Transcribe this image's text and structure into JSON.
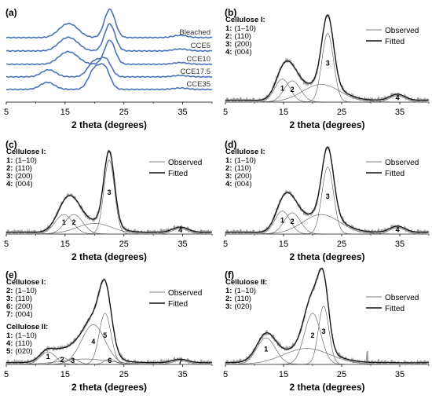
{
  "chart_data": [
    {
      "panel": "(a)",
      "type": "line",
      "xlabel": "2 theta (degrees)",
      "ylabel": "",
      "xlim": [
        5,
        40
      ],
      "xticks": [
        5,
        15,
        25,
        35
      ],
      "grid": false,
      "series": [
        {
          "name": "Bleached",
          "color": "#4a72b8",
          "peaks": [
            [
              14.8,
              0.3,
              1.3
            ],
            [
              16.4,
              0.3,
              1.3
            ],
            [
              22.6,
              1.0,
              0.9
            ],
            [
              34.6,
              0.08,
              1.2
            ]
          ]
        },
        {
          "name": "CCE5",
          "color": "#4a72b8",
          "peaks": [
            [
              14.8,
              0.3,
              1.3
            ],
            [
              16.4,
              0.28,
              1.3
            ],
            [
              22.6,
              0.95,
              0.9
            ],
            [
              34.6,
              0.07,
              1.2
            ]
          ]
        },
        {
          "name": "CCE10",
          "color": "#4a72b8",
          "peaks": [
            [
              14.8,
              0.28,
              1.3
            ],
            [
              16.4,
              0.26,
              1.3
            ],
            [
              22.6,
              0.85,
              0.9
            ],
            [
              34.6,
              0.06,
              1.2
            ]
          ]
        },
        {
          "name": "CCE17.5",
          "color": "#4a72b8",
          "peaks": [
            [
              12.2,
              0.25,
              1.2
            ],
            [
              20.0,
              0.55,
              1.1
            ],
            [
              22.0,
              0.55,
              0.9
            ],
            [
              34.6,
              0.05,
              1.2
            ]
          ]
        },
        {
          "name": "CCE35",
          "color": "#4a72b8",
          "peaks": [
            [
              12.0,
              0.25,
              1.2
            ],
            [
              20.0,
              0.7,
              1.0
            ],
            [
              21.8,
              0.7,
              0.9
            ],
            [
              34.6,
              0.05,
              1.2
            ]
          ]
        }
      ]
    },
    {
      "panel": "(b)",
      "type": "line",
      "xlabel": "2 theta (degrees)",
      "xlim": [
        5,
        40
      ],
      "xticks": [
        5,
        15,
        25,
        35
      ],
      "legend": [
        "Observed",
        "Fitted"
      ],
      "legend_placement": "right",
      "phase_legend": [
        {
          "title": "Cellulose I:",
          "items": [
            {
              "num": "1:",
              "hkl": "(1–10)"
            },
            {
              "num": "2:",
              "hkl": "(110)"
            },
            {
              "num": "3:",
              "hkl": "(200)"
            },
            {
              "num": "4:",
              "hkl": "(004)"
            }
          ]
        }
      ],
      "peaks": [
        {
          "label": "1",
          "center": 14.8,
          "height": 0.26,
          "width": 1.3
        },
        {
          "label": "2",
          "center": 16.5,
          "height": 0.24,
          "width": 1.4
        },
        {
          "label": "3",
          "center": 22.6,
          "height": 0.78,
          "width": 1.0
        },
        {
          "label": "4",
          "center": 34.6,
          "height": 0.07,
          "width": 1.3
        }
      ],
      "amorphous": {
        "center": 21.5,
        "height": 0.2,
        "width": 3.2
      },
      "baseline": 0.02
    },
    {
      "panel": "(c)",
      "type": "line",
      "xlabel": "2 theta (degrees)",
      "xlim": [
        5,
        40
      ],
      "xticks": [
        5,
        15,
        25,
        35
      ],
      "legend": [
        "Observed",
        "Fitted"
      ],
      "legend_placement": "right",
      "phase_legend": [
        {
          "title": "Cellulose I:",
          "items": [
            {
              "num": "1:",
              "hkl": "(1–10)"
            },
            {
              "num": "2:",
              "hkl": "(110)"
            },
            {
              "num": "3:",
              "hkl": "(200)"
            },
            {
              "num": "4:",
              "hkl": "(004)"
            }
          ]
        }
      ],
      "peaks": [
        {
          "label": "1",
          "center": 14.8,
          "height": 0.22,
          "width": 1.5
        },
        {
          "label": "2",
          "center": 16.5,
          "height": 0.22,
          "width": 1.5
        },
        {
          "label": "3",
          "center": 22.5,
          "height": 0.84,
          "width": 0.9
        },
        {
          "label": "4",
          "center": 34.6,
          "height": 0.06,
          "width": 1.3
        }
      ],
      "amorphous": {
        "center": 20.0,
        "height": 0.12,
        "width": 3.0
      },
      "baseline": 0.02
    },
    {
      "panel": "(d)",
      "type": "line",
      "xlabel": "2 theta (degrees)",
      "xlim": [
        5,
        40
      ],
      "xticks": [
        5,
        15,
        25,
        35
      ],
      "legend": [
        "Observed",
        "Fitted"
      ],
      "legend_placement": "right",
      "phase_legend": [
        {
          "title": "Cellulose I:",
          "items": [
            {
              "num": "1:",
              "hkl": "(1–10)"
            },
            {
              "num": "2:",
              "hkl": "(110)"
            },
            {
              "num": "3:",
              "hkl": "(200)"
            },
            {
              "num": "4:",
              "hkl": "(004)"
            }
          ]
        }
      ],
      "peaks": [
        {
          "label": "1",
          "center": 14.8,
          "height": 0.26,
          "width": 1.3
        },
        {
          "label": "2",
          "center": 16.5,
          "height": 0.24,
          "width": 1.4
        },
        {
          "label": "3",
          "center": 22.6,
          "height": 0.76,
          "width": 1.0
        },
        {
          "label": "4",
          "center": 34.6,
          "height": 0.07,
          "width": 1.3
        }
      ],
      "amorphous": {
        "center": 21.5,
        "height": 0.22,
        "width": 3.2
      },
      "baseline": 0.02
    },
    {
      "panel": "(e)",
      "type": "line",
      "xlabel": "2 theta (degrees)",
      "xlim": [
        5,
        40
      ],
      "xticks": [
        5,
        15,
        25,
        35
      ],
      "legend": [
        "Observed",
        "Fitted"
      ],
      "legend_placement": "right",
      "phase_legend": [
        {
          "title": "Cellulose I:",
          "items": [
            {
              "num": "2:",
              "hkl": "(1–10)"
            },
            {
              "num": "3:",
              "hkl": "(110)"
            },
            {
              "num": "6:",
              "hkl": "(200)"
            },
            {
              "num": "7:",
              "hkl": "(004)"
            }
          ]
        },
        {
          "title": "Cellulose II:",
          "items": [
            {
              "num": "1:",
              "hkl": "(1–10)"
            },
            {
              "num": "4:",
              "hkl": "(110)"
            },
            {
              "num": "5:",
              "hkl": "(020)"
            }
          ]
        }
      ],
      "peaks": [
        {
          "label": "1",
          "center": 12.1,
          "height": 0.14,
          "width": 1.3
        },
        {
          "label": "2",
          "center": 14.5,
          "height": 0.08,
          "width": 1.0
        },
        {
          "label": "3",
          "center": 16.3,
          "height": 0.06,
          "width": 1.0
        },
        {
          "label": "4",
          "center": 19.8,
          "height": 0.45,
          "width": 2.0
        },
        {
          "label": "5",
          "center": 21.8,
          "height": 0.58,
          "width": 1.0
        },
        {
          "label": "6",
          "center": 22.6,
          "height": 0.06,
          "width": 0.9
        },
        {
          "label": "7",
          "center": 34.6,
          "height": 0.04,
          "width": 1.3
        }
      ],
      "amorphous": {
        "center": 18.5,
        "height": 0.06,
        "width": 4.0
      },
      "baseline": 0.02
    },
    {
      "panel": "(f)",
      "type": "line",
      "xlabel": "2 theta (degrees)",
      "xlim": [
        5,
        40
      ],
      "xticks": [
        5,
        15,
        25,
        35
      ],
      "legend": [
        "Observed",
        "Fitted"
      ],
      "legend_placement": "right",
      "phase_legend": [
        {
          "title": "Cellulose II:",
          "items": [
            {
              "num": "1:",
              "hkl": "(1–10)"
            },
            {
              "num": "2:",
              "hkl": "(110)"
            },
            {
              "num": "3:",
              "hkl": "(020)"
            }
          ]
        }
      ],
      "peaks": [
        {
          "label": "1",
          "center": 12.0,
          "height": 0.3,
          "width": 1.6
        },
        {
          "label": "2",
          "center": 20.0,
          "height": 0.58,
          "width": 1.4
        },
        {
          "label": "3",
          "center": 21.9,
          "height": 0.66,
          "width": 0.9
        }
      ],
      "amorphous": {
        "center": 19.0,
        "height": 0.18,
        "width": 4.0
      },
      "baseline": 0.02,
      "spike": {
        "x": 29.4,
        "height": 0.12
      }
    }
  ]
}
